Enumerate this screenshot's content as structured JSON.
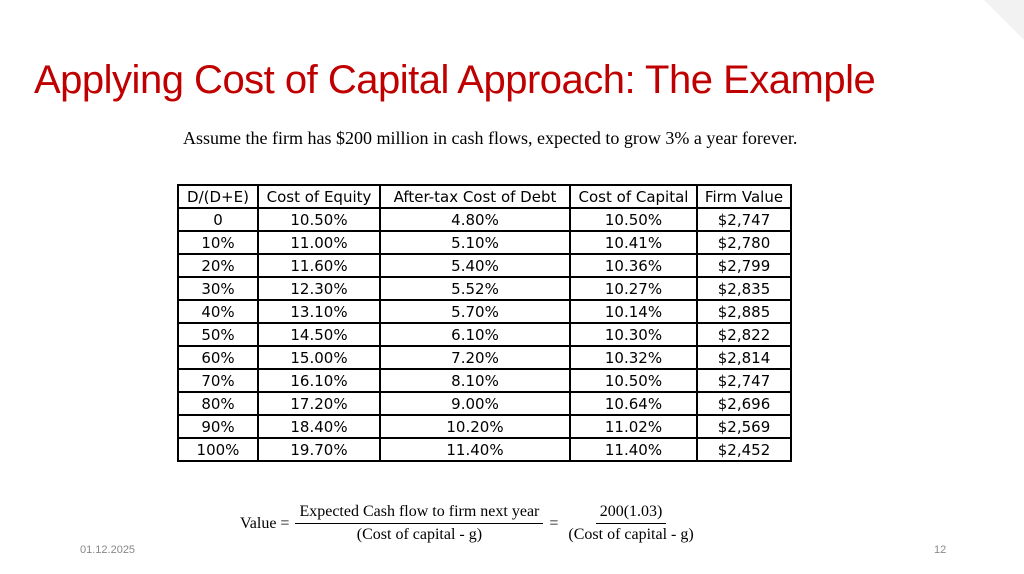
{
  "slide": {
    "title": "Applying Cost of Capital Approach: The Example",
    "subtitle": "Assume the firm has $200 million in cash flows, expected to grow 3% a year forever.",
    "footer_date": "01.12.2025",
    "page_number": "12",
    "title_color": "#c00000"
  },
  "table": {
    "headers": [
      "D/(D+E)",
      "Cost of Equity",
      "After-tax Cost of Debt",
      "Cost of Capital",
      "Firm Value"
    ],
    "rows": [
      [
        "0",
        "10.50%",
        "4.80%",
        "10.50%",
        "$2,747"
      ],
      [
        "10%",
        "11.00%",
        "5.10%",
        "10.41%",
        "$2,780"
      ],
      [
        "20%",
        "11.60%",
        "5.40%",
        "10.36%",
        "$2,799"
      ],
      [
        "30%",
        "12.30%",
        "5.52%",
        "10.27%",
        "$2,835"
      ],
      [
        "40%",
        "13.10%",
        "5.70%",
        "10.14%",
        "$2,885"
      ],
      [
        "50%",
        "14.50%",
        "6.10%",
        "10.30%",
        "$2,822"
      ],
      [
        "60%",
        "15.00%",
        "7.20%",
        "10.32%",
        "$2,814"
      ],
      [
        "70%",
        "16.10%",
        "8.10%",
        "10.50%",
        "$2,747"
      ],
      [
        "80%",
        "17.20%",
        "9.00%",
        "10.64%",
        "$2,696"
      ],
      [
        "90%",
        "18.40%",
        "10.20%",
        "11.02%",
        "$2,569"
      ],
      [
        "100%",
        "19.70%",
        "11.40%",
        "11.40%",
        "$2,452"
      ]
    ]
  },
  "formula": {
    "lhs": "Value =",
    "frac1_num": "Expected Cash flow to firm next year",
    "frac1_den": "(Cost of capital  - g)",
    "equals": "=",
    "frac2_num": "200(1.03)",
    "frac2_den": "(Cost of capital  - g)"
  }
}
